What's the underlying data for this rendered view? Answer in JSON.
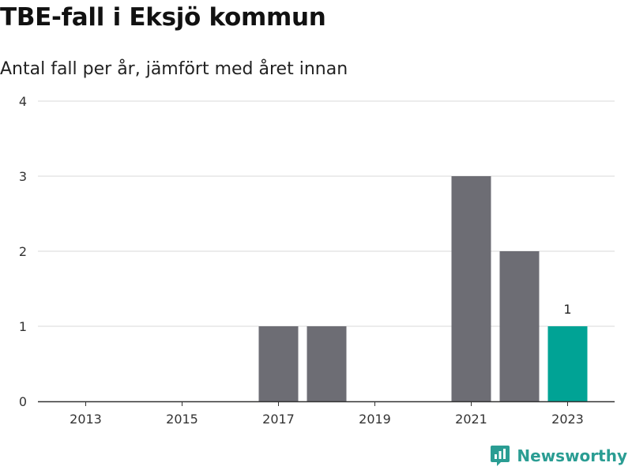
{
  "header": {
    "title": "TBE-fall i Eksjö kommun",
    "subtitle": "Antal fall per år, jämfört med året innan"
  },
  "brand": {
    "name": "Newsworthy",
    "icon": "newsworthy-logo-icon"
  },
  "colors": {
    "bar": "#6d6d74",
    "highlight": "#00a395",
    "grid": "#d9d9d9",
    "axis": "#333333",
    "brand": "#2a9d93"
  },
  "chart_data": {
    "type": "bar",
    "categories": [
      "2013",
      "2014",
      "2015",
      "2016",
      "2017",
      "2018",
      "2019",
      "2020",
      "2021",
      "2022",
      "2023"
    ],
    "values": [
      0,
      0,
      0,
      0,
      1,
      1,
      0,
      0,
      3,
      2,
      1
    ],
    "highlight_category": "2023",
    "data_labels": [
      {
        "category": "2023",
        "text": "1"
      }
    ],
    "xticks": [
      "2013",
      "2015",
      "2017",
      "2019",
      "2021",
      "2023"
    ],
    "yticks": [
      0,
      1,
      2,
      3,
      4
    ],
    "ylim": [
      0,
      4
    ],
    "grid": true,
    "legend": false
  }
}
